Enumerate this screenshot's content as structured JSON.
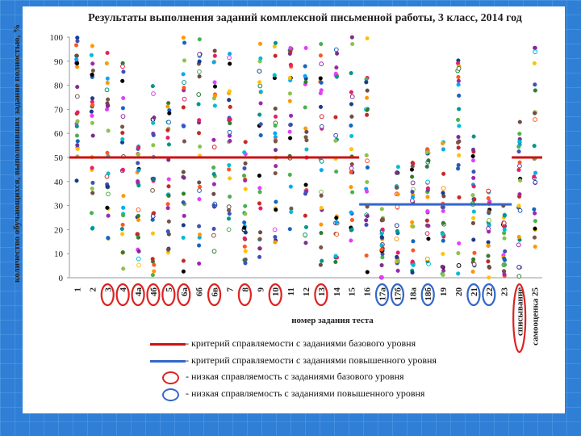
{
  "chart_data": {
    "type": "scatter",
    "title": "Результаты выполнения заданий комплексной письменной работы, 3 класс, 2014 год",
    "xlabel": "номер задания теста",
    "ylabel": "количество обучающихся, выполнивших задание полностью, %",
    "ylim": [
      0,
      100
    ],
    "yticks": [
      0,
      10,
      20,
      30,
      40,
      50,
      60,
      70,
      80,
      90,
      100
    ],
    "categories": [
      "1",
      "2",
      "3",
      "4",
      "4а",
      "4б",
      "5",
      "6а",
      "6б",
      "6в",
      "7",
      "8",
      "9",
      "10",
      "11",
      "12",
      "13",
      "14",
      "15",
      "16",
      "17а",
      "17б",
      "18а",
      "18б",
      "19",
      "20",
      "21",
      "22",
      "23",
      "списывание",
      "самооценка 25"
    ],
    "base_criterion": {
      "value": 50,
      "from": "1",
      "to": "15",
      "color": "#cc1111"
    },
    "advanced_criterion": {
      "value": 30.5,
      "from": "16",
      "to": "23",
      "color": "#3366cc"
    },
    "base_criterion_right": {
      "value": 50,
      "from": "списывание",
      "to": "самооценка 25",
      "color": "#cc1111"
    },
    "circled_red": [
      "3",
      "4",
      "4а",
      "4б",
      "5",
      "6а",
      "6в",
      "8",
      "10",
      "13",
      "списывание"
    ],
    "circled_blue": [
      "17а",
      "17б",
      "18б",
      "21",
      "22"
    ],
    "ranges": [
      [
        40,
        100
      ],
      [
        20,
        100
      ],
      [
        5,
        100
      ],
      [
        0,
        90
      ],
      [
        5,
        55
      ],
      [
        0,
        85
      ],
      [
        10,
        75
      ],
      [
        0,
        100
      ],
      [
        5,
        100
      ],
      [
        10,
        100
      ],
      [
        20,
        98
      ],
      [
        5,
        60
      ],
      [
        5,
        100
      ],
      [
        10,
        100
      ],
      [
        20,
        100
      ],
      [
        10,
        100
      ],
      [
        5,
        100
      ],
      [
        5,
        100
      ],
      [
        10,
        100
      ],
      [
        0,
        100
      ],
      [
        0,
        30
      ],
      [
        0,
        50
      ],
      [
        0,
        48
      ],
      [
        0,
        55
      ],
      [
        0,
        60
      ],
      [
        0,
        100
      ],
      [
        0,
        60
      ],
      [
        0,
        40
      ],
      [
        0,
        30
      ],
      [
        0,
        75
      ],
      [
        10,
        100
      ]
    ],
    "point_colors": [
      "#7b2d8e",
      "#1a3a8c",
      "#8bc34a",
      "#e91e63",
      "#ff9800",
      "#00bcd4",
      "#2e7d32",
      "#c62828",
      "#1565c0",
      "#6d4c41",
      "#9c27b0",
      "#4caf50",
      "#3f51b5",
      "#ffc107",
      "#000000",
      "#03a9f4",
      "#795548",
      "#e040fb",
      "#009688",
      "#ff5722"
    ],
    "series_per_category": 24
  },
  "legend": [
    {
      "kind": "line",
      "color": "#cc1111",
      "label": "- критерий справляемости с заданиями базового уровня"
    },
    {
      "kind": "line",
      "color": "#3366cc",
      "label": "- критерий справляемости с заданиями повышенного уровня"
    },
    {
      "kind": "ring",
      "color": "#dd2222",
      "label": "- низкая справляемость с заданиями базового уровня"
    },
    {
      "kind": "ring",
      "color": "#3366cc",
      "label": "- низкая справляемость с заданиями повышенного уровня"
    }
  ]
}
